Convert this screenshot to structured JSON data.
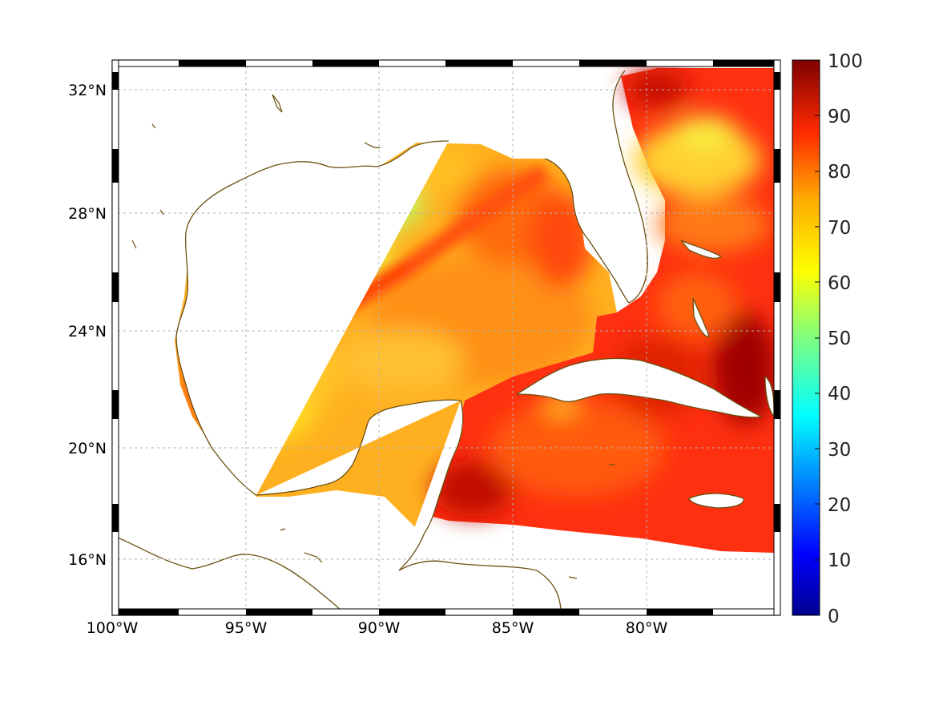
{
  "map": {
    "lon_range": [
      -100,
      -75
    ],
    "lat_range": [
      14.3,
      33.0
    ],
    "lat_labels": [
      "32°N",
      "28°N",
      "24°N",
      "20°N",
      "16°N"
    ],
    "lat_values": [
      32,
      28,
      24,
      20,
      16
    ],
    "lon_labels": [
      "100°W",
      "95°W",
      "90°W",
      "85°W",
      "80°W"
    ],
    "lon_values": [
      -100,
      -95,
      -90,
      -85,
      -80
    ],
    "grid": "dashed",
    "coastline_color": "#6b4f10",
    "land_color": "#ffffff"
  },
  "colorbar": {
    "min": 0,
    "max": 100,
    "colormap": "jet",
    "labels": [
      "100",
      "90",
      "80",
      "70",
      "60",
      "50",
      "40",
      "30",
      "20",
      "10",
      "0"
    ]
  }
}
